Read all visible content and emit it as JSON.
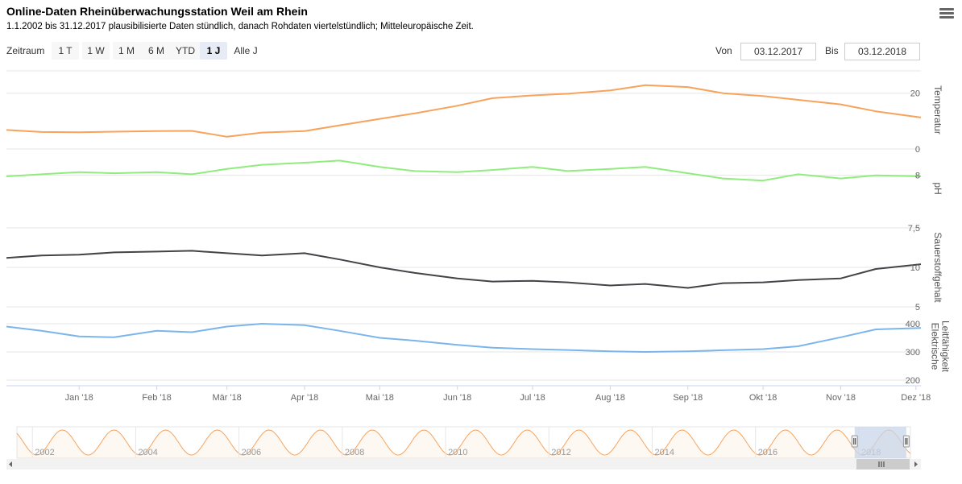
{
  "header": {
    "title": "Online-Daten Rheinüberwachungsstation Weil am Rhein",
    "subtitle": "1.1.2002 bis 31.12.2017 plausibilisierte Daten stündlich, danach Rohdaten viertelstündlich; Mitteleuropäische Zeit."
  },
  "range_selector": {
    "label": "Zeitraum",
    "buttons": [
      "1 T",
      "1 W",
      "1 M",
      "6 M",
      "YTD",
      "1 J",
      "Alle J"
    ],
    "active": "1 J"
  },
  "date_inputs": {
    "from_label": "Von",
    "from_value": "03.12.2017",
    "to_label": "Bis",
    "to_value": "03.12.2018"
  },
  "colors": {
    "temperature": "#f7a35c",
    "ph": "#90ed7d",
    "oxygen": "#434348",
    "conductivity": "#7cb5ec",
    "navigator": "#f7a35c",
    "navigator_mask": "#c8d5ea"
  },
  "chart_data": {
    "type": "line",
    "x_range": [
      "2017-12-03",
      "2018-12-03"
    ],
    "x_tick_labels": [
      "Jan '18",
      "Feb '18",
      "Mär '18",
      "Apr '18",
      "Mai '18",
      "Jun '18",
      "Jul '18",
      "Aug '18",
      "Sep '18",
      "Okt '18",
      "Nov '18",
      "Dez '18"
    ],
    "x": [
      "2017-12-03",
      "2017-12-17",
      "2018-01-01",
      "2018-01-15",
      "2018-02-01",
      "2018-02-15",
      "2018-03-01",
      "2018-03-15",
      "2018-04-01",
      "2018-04-15",
      "2018-05-01",
      "2018-05-15",
      "2018-06-01",
      "2018-06-15",
      "2018-07-01",
      "2018-07-15",
      "2018-08-01",
      "2018-08-15",
      "2018-09-01",
      "2018-09-15",
      "2018-10-01",
      "2018-10-15",
      "2018-11-01",
      "2018-11-15",
      "2018-12-03"
    ],
    "panels": [
      {
        "name": "Temperatur",
        "axis_label": "Temperatur",
        "tick_labels": [
          "0",
          "20"
        ],
        "ylim": [
          0,
          28
        ],
        "values": [
          6.8,
          6.1,
          6.0,
          6.2,
          6.4,
          6.5,
          4.4,
          5.9,
          6.4,
          8.5,
          10.8,
          12.8,
          15.5,
          18.2,
          19.2,
          19.8,
          21.0,
          22.9,
          22.2,
          20.0,
          19.0,
          17.6,
          16.0,
          13.5,
          11.3
        ]
      },
      {
        "name": "pH",
        "axis_label": "pH",
        "tick_labels": [
          "7,5",
          "8"
        ],
        "ylim": [
          7.5,
          8.25
        ],
        "values": [
          7.99,
          8.01,
          8.03,
          8.02,
          8.03,
          8.01,
          8.06,
          8.1,
          8.12,
          8.14,
          8.08,
          8.04,
          8.03,
          8.05,
          8.08,
          8.04,
          8.06,
          8.08,
          8.02,
          7.97,
          7.95,
          8.01,
          7.97,
          8.0,
          7.99
        ]
      },
      {
        "name": "Sauerstoffgehalt",
        "axis_label": "Sauerstoffgehalt",
        "tick_labels": [
          "5",
          "10"
        ],
        "ylim": [
          5,
          15
        ],
        "values": [
          11.2,
          11.5,
          11.6,
          11.9,
          12.0,
          12.1,
          11.8,
          11.5,
          11.8,
          11.0,
          10.0,
          9.3,
          8.6,
          8.2,
          8.3,
          8.1,
          7.7,
          7.9,
          7.4,
          8.0,
          8.1,
          8.4,
          8.6,
          9.8,
          10.4
        ]
      },
      {
        "name": "Elektrische Leitfähigkeit",
        "axis_label": "Elektrische Leitfähigkeit",
        "tick_labels": [
          "200",
          "300",
          "400"
        ],
        "ylim": [
          180,
          460
        ],
        "values": [
          390,
          375,
          355,
          352,
          375,
          370,
          390,
          400,
          395,
          375,
          350,
          340,
          325,
          315,
          310,
          307,
          302,
          300,
          302,
          306,
          310,
          320,
          352,
          380,
          385
        ]
      }
    ],
    "navigator": {
      "type": "area",
      "series_name": "Temperatur",
      "x_tick_labels": [
        "2002",
        "2004",
        "2006",
        "2008",
        "2010",
        "2012",
        "2014",
        "2016",
        "2018"
      ],
      "x_range": [
        2001.7,
        2019.0
      ],
      "selected_range": [
        2017.92,
        2018.92
      ]
    }
  }
}
